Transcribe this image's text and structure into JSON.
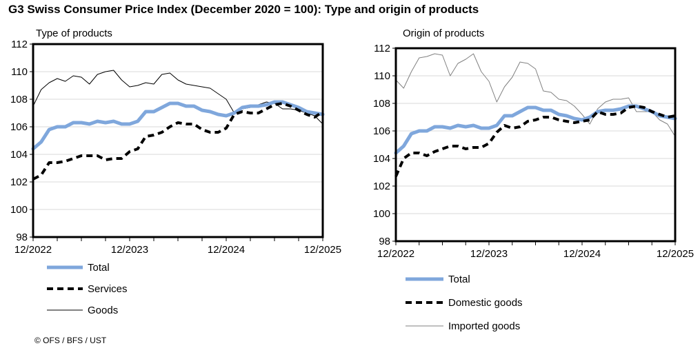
{
  "title": "G3 Swiss Consumer Price Index (December 2020 = 100): Type and origin of products",
  "footer": "© OFS / BFS / UST",
  "chart_data": [
    {
      "type": "line",
      "title": "Type of products",
      "x_tick_labels": [
        "12/2022",
        "12/2023",
        "12/2024",
        "12/2025"
      ],
      "x": "monthly, 12/2022 to 12/2025",
      "ylim": [
        98,
        112
      ],
      "y_ticks": [
        98,
        100,
        102,
        104,
        106,
        108,
        110,
        112
      ],
      "grid": true,
      "legend": "bottom",
      "series": [
        {
          "name": "Total",
          "color": "#7fa7dc",
          "style": "thick solid",
          "values": [
            104.4,
            104.9,
            105.8,
            106.0,
            106.0,
            106.3,
            106.3,
            106.2,
            106.4,
            106.3,
            106.4,
            106.2,
            106.2,
            106.4,
            107.1,
            107.1,
            107.4,
            107.7,
            107.7,
            107.5,
            107.5,
            107.2,
            107.1,
            106.9,
            106.8,
            107.0,
            107.4,
            107.5,
            107.5,
            107.6,
            107.8,
            107.8,
            107.6,
            107.4,
            107.1,
            107.0,
            106.9
          ]
        },
        {
          "name": "Services",
          "color": "#000000",
          "style": "thick dashed",
          "values": [
            102.2,
            102.5,
            103.4,
            103.4,
            103.5,
            103.7,
            103.9,
            103.9,
            103.9,
            103.6,
            103.7,
            103.7,
            104.2,
            104.4,
            105.3,
            105.4,
            105.6,
            106.0,
            106.3,
            106.2,
            106.2,
            105.8,
            105.6,
            105.6,
            105.9,
            106.9,
            107.1,
            107.0,
            107.0,
            107.3,
            107.6,
            107.7,
            107.5,
            107.2,
            106.9,
            106.7,
            107.1
          ]
        },
        {
          "name": "Goods",
          "color": "#000000",
          "style": "thin solid",
          "values": [
            107.5,
            108.7,
            109.2,
            109.5,
            109.3,
            109.7,
            109.6,
            109.1,
            109.8,
            110.0,
            110.1,
            109.4,
            108.9,
            109.0,
            109.2,
            109.1,
            109.8,
            109.9,
            109.4,
            109.1,
            109.0,
            108.9,
            108.8,
            108.4,
            108.0,
            107.0,
            107.3,
            107.4,
            107.6,
            107.8,
            107.7,
            107.3,
            107.3,
            107.2,
            107.0,
            106.8,
            106.2
          ]
        }
      ]
    },
    {
      "type": "line",
      "title": "Origin of products",
      "x_tick_labels": [
        "12/2022",
        "12/2023",
        "12/2024",
        "12/2025"
      ],
      "x": "monthly, 12/2022 to 12/2025",
      "ylim": [
        98,
        112
      ],
      "y_ticks": [
        98,
        100,
        102,
        104,
        106,
        108,
        110,
        112
      ],
      "grid": true,
      "legend": "bottom",
      "series": [
        {
          "name": "Total",
          "color": "#7fa7dc",
          "style": "thick solid",
          "values": [
            104.4,
            104.9,
            105.8,
            106.0,
            106.0,
            106.3,
            106.3,
            106.2,
            106.4,
            106.3,
            106.4,
            106.2,
            106.2,
            106.4,
            107.1,
            107.1,
            107.4,
            107.7,
            107.7,
            107.5,
            107.5,
            107.2,
            107.1,
            106.9,
            106.8,
            107.0,
            107.4,
            107.5,
            107.5,
            107.6,
            107.8,
            107.8,
            107.6,
            107.4,
            107.1,
            107.0,
            106.9
          ]
        },
        {
          "name": "Domestic goods",
          "color": "#000000",
          "style": "thick dashed",
          "values": [
            102.7,
            104.0,
            104.4,
            104.4,
            104.2,
            104.5,
            104.7,
            104.9,
            104.9,
            104.7,
            104.8,
            104.8,
            105.1,
            105.9,
            106.4,
            106.2,
            106.3,
            106.7,
            106.8,
            107.0,
            107.0,
            106.8,
            106.7,
            106.6,
            106.7,
            106.8,
            107.4,
            107.2,
            107.2,
            107.3,
            107.7,
            107.8,
            107.7,
            107.4,
            107.2,
            107.0,
            107.1
          ]
        },
        {
          "name": "Imported goods",
          "color": "#808080",
          "style": "thin solid",
          "values": [
            109.7,
            109.1,
            110.3,
            111.3,
            111.4,
            111.6,
            111.5,
            110.0,
            110.9,
            111.2,
            111.6,
            110.3,
            109.6,
            108.1,
            109.2,
            109.9,
            111.0,
            110.9,
            110.5,
            108.9,
            108.8,
            108.3,
            108.2,
            107.8,
            107.2,
            106.5,
            107.6,
            108.1,
            108.3,
            108.3,
            108.4,
            107.4,
            107.4,
            107.4,
            106.8,
            106.5,
            105.6
          ]
        }
      ]
    }
  ]
}
